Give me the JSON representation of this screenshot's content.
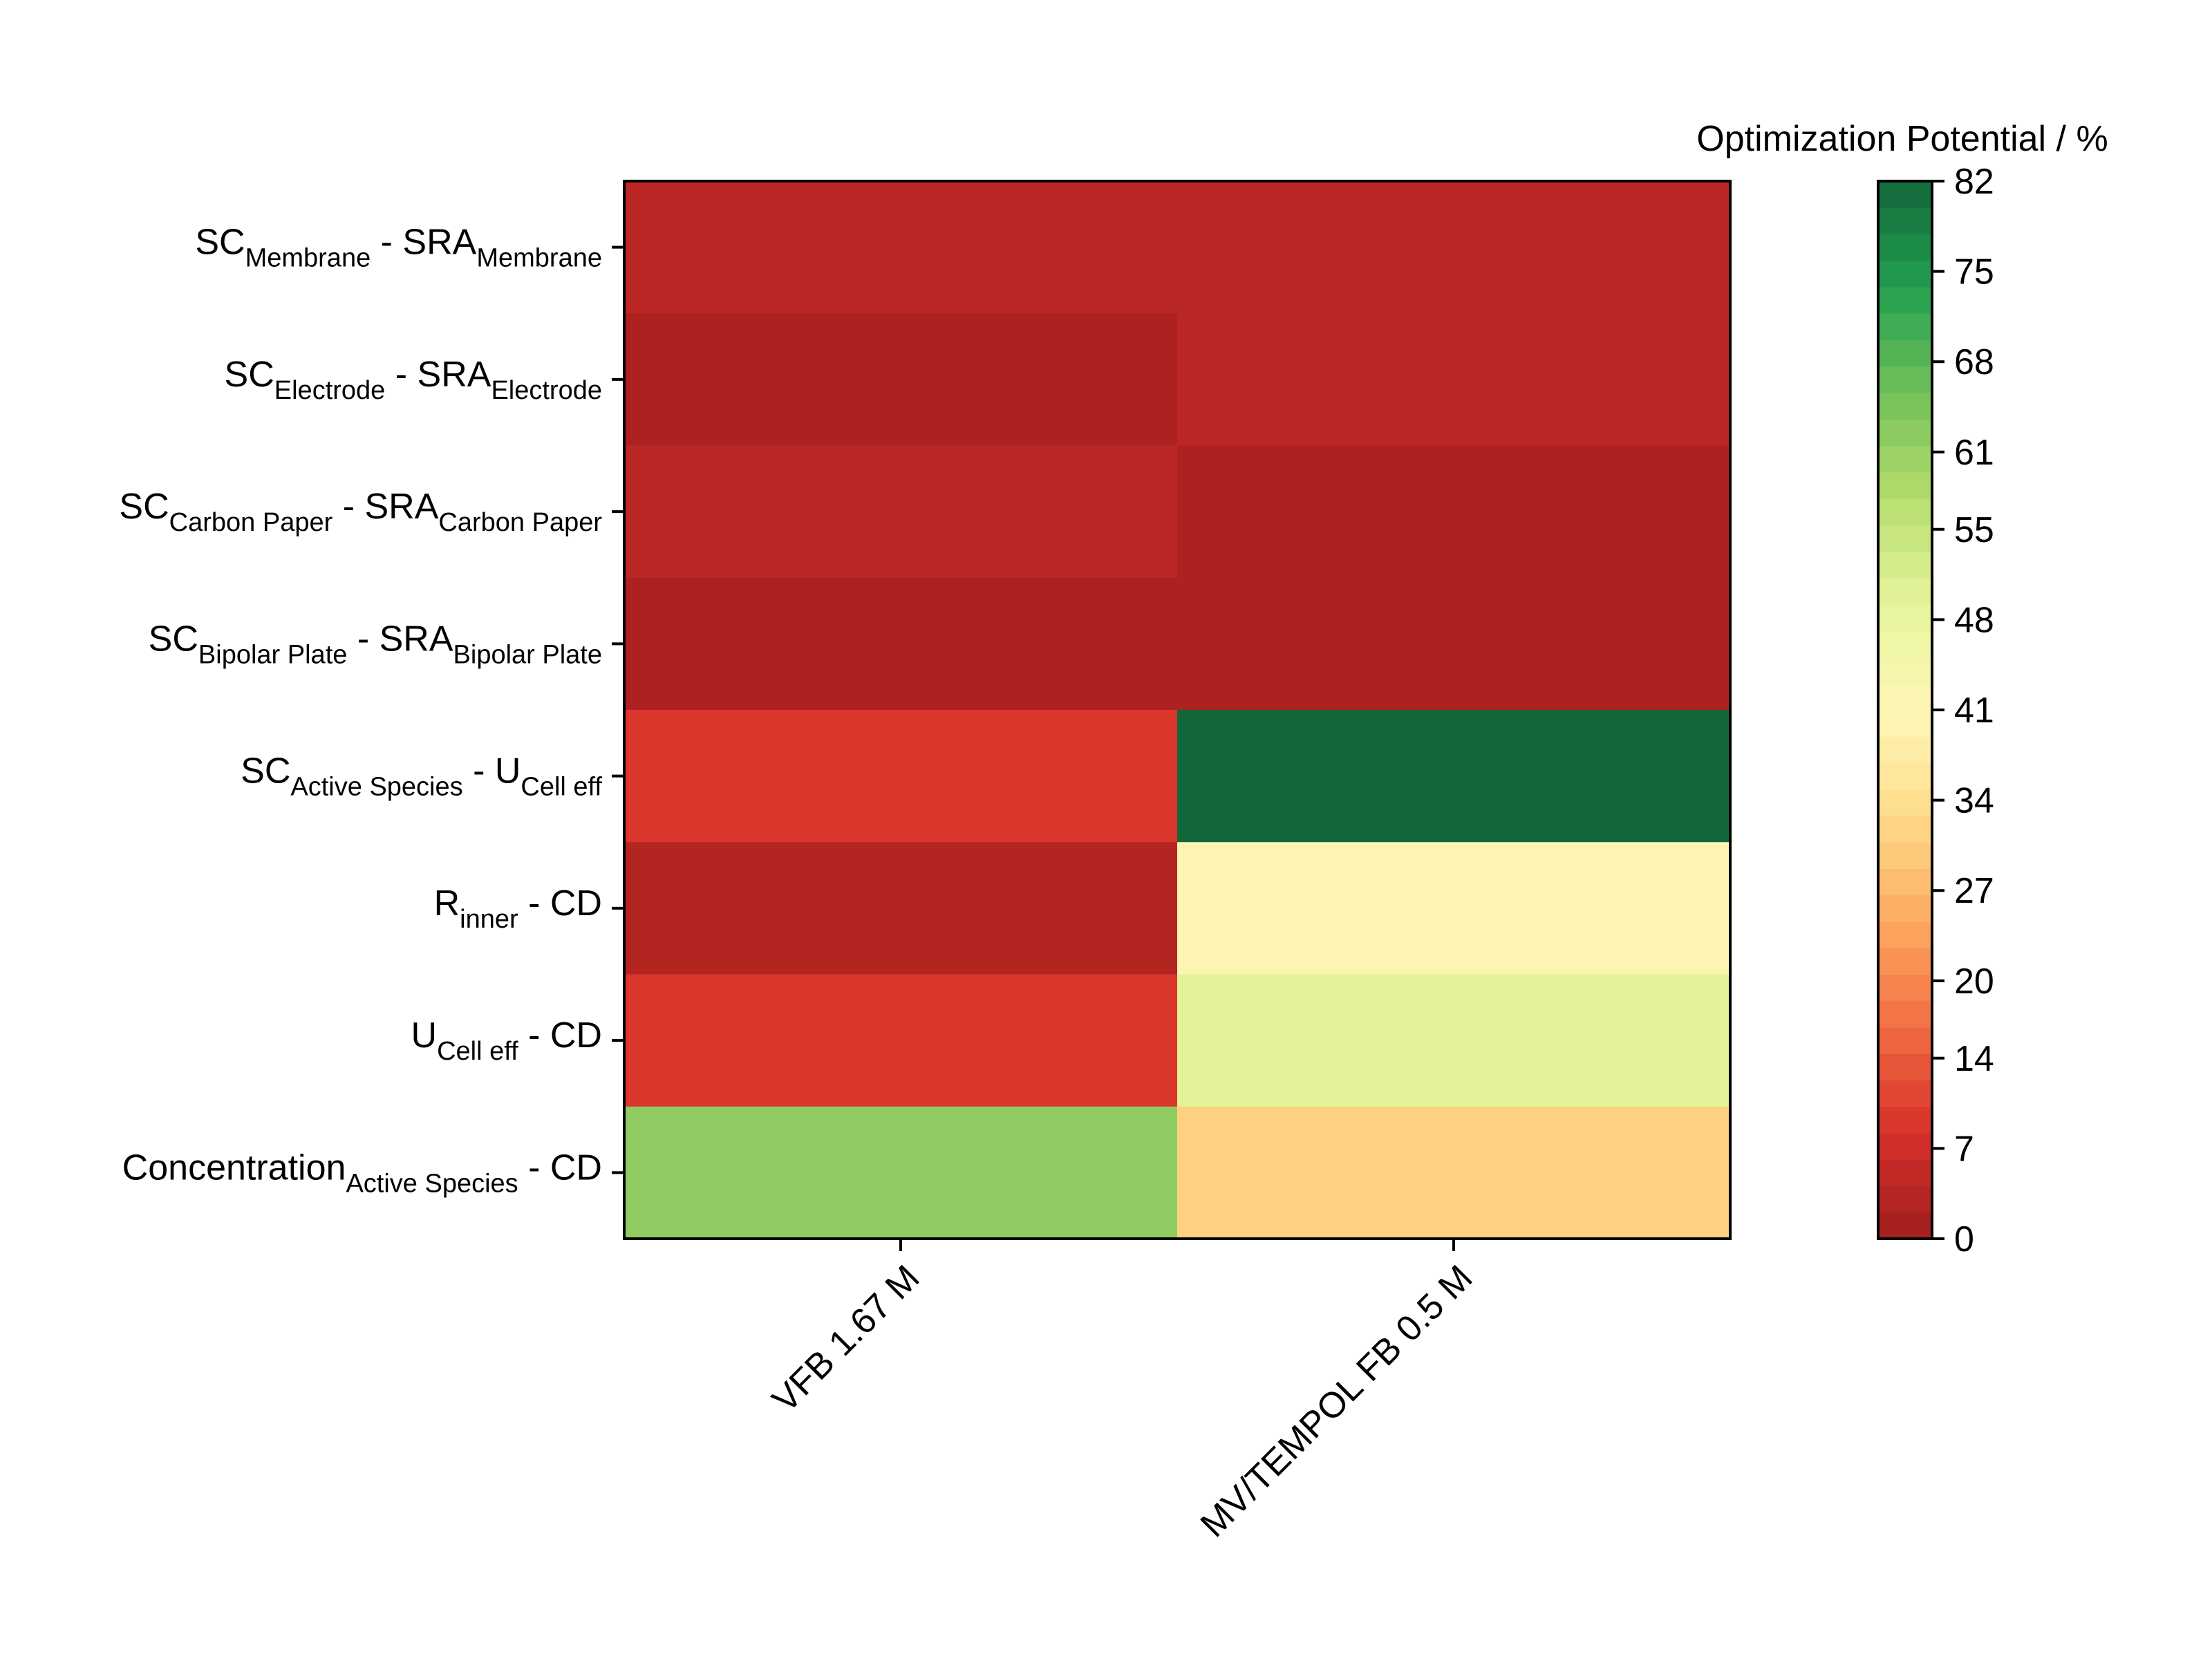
{
  "chart_data": {
    "type": "heatmap",
    "title": "",
    "xlabel": "",
    "ylabel": "",
    "columns": [
      "VFB 1.67 M",
      "MV/TEMPOL FB 0.5 M"
    ],
    "rows": [
      {
        "parts": [
          {
            "t": "SC"
          },
          {
            "t": "Membrane",
            "sub": true
          },
          {
            "t": " - SRA"
          },
          {
            "t": "Membrane",
            "sub": true
          }
        ]
      },
      {
        "parts": [
          {
            "t": "SC"
          },
          {
            "t": "Electrode",
            "sub": true
          },
          {
            "t": " - SRA"
          },
          {
            "t": "Electrode",
            "sub": true
          }
        ]
      },
      {
        "parts": [
          {
            "t": "SC"
          },
          {
            "t": "Carbon Paper",
            "sub": true
          },
          {
            "t": " - SRA"
          },
          {
            "t": "Carbon Paper",
            "sub": true
          }
        ]
      },
      {
        "parts": [
          {
            "t": "SC"
          },
          {
            "t": "Bipolar Plate",
            "sub": true
          },
          {
            "t": " - SRA"
          },
          {
            "t": "Bipolar Plate",
            "sub": true
          }
        ]
      },
      {
        "parts": [
          {
            "t": "SC"
          },
          {
            "t": "Active Species",
            "sub": true
          },
          {
            "t": " - U"
          },
          {
            "t": "Cell eff",
            "sub": true
          }
        ]
      },
      {
        "parts": [
          {
            "t": "R"
          },
          {
            "t": "inner",
            "sub": true
          },
          {
            "t": " - CD"
          }
        ]
      },
      {
        "parts": [
          {
            "t": "U"
          },
          {
            "t": "Cell eff",
            "sub": true
          },
          {
            "t": " - CD"
          }
        ]
      },
      {
        "parts": [
          {
            "t": "Concentration"
          },
          {
            "t": "Active Species",
            "sub": true
          },
          {
            "t": " - CD"
          }
        ]
      }
    ],
    "values": [
      [
        4,
        4
      ],
      [
        2,
        4
      ],
      [
        4,
        2
      ],
      [
        2,
        2
      ],
      [
        9,
        82
      ],
      [
        3,
        40
      ],
      [
        9,
        50
      ],
      [
        62,
        31
      ]
    ],
    "colorbar": {
      "label": "Optimization Potential / %",
      "min": 0,
      "max": 82,
      "ticks": [
        0,
        7,
        14,
        20,
        27,
        34,
        41,
        48,
        55,
        61,
        68,
        75,
        82
      ],
      "palette": [
        "#a01e1e",
        "#d7302a",
        "#f26c43",
        "#fcaa60",
        "#fedb8a",
        "#fef7b6",
        "#e6f59a",
        "#b5dd6e",
        "#72c058",
        "#22a051",
        "#12673a"
      ]
    }
  }
}
